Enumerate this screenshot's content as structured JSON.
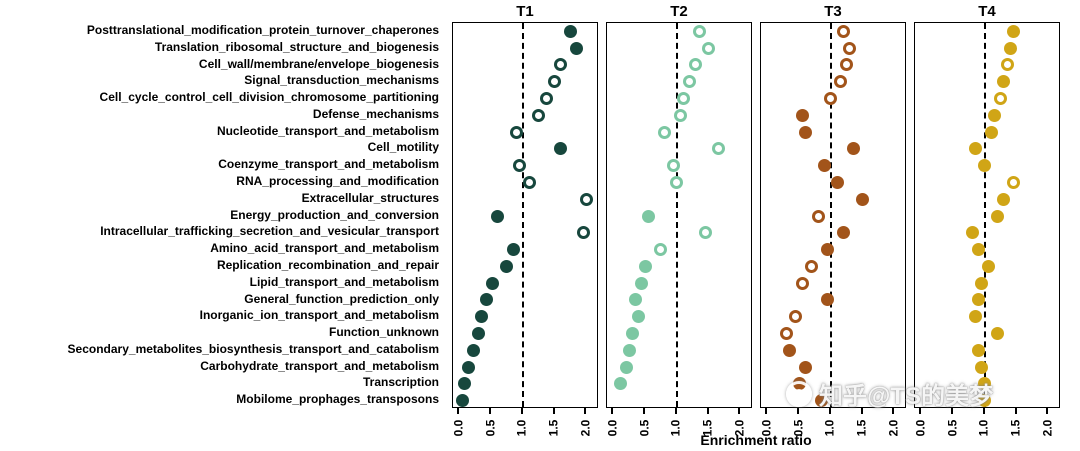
{
  "watermark": {
    "text": "知乎@TS的美梦"
  },
  "chart_data": {
    "type": "scatter",
    "title": "",
    "xlabel": "Enrichment ratio",
    "ylabel": "",
    "grid": false,
    "legend": "none",
    "x_ticks": [
      "0.0",
      "0.5",
      "1.0",
      "1.5",
      "2.0"
    ],
    "x_tick_values": [
      0.0,
      0.5,
      1.0,
      1.5,
      2.0
    ],
    "xlim": [
      -0.1,
      2.2
    ],
    "reference_line_x": 1.0,
    "categories": [
      "Posttranslational_modification_protein_turnover_chaperones",
      "Translation_ribosomal_structure_and_biogenesis",
      "Cell_wall/membrane/envelope_biogenesis",
      "Signal_transduction_mechanisms",
      "Cell_cycle_control_cell_division_chromosome_partitioning",
      "Defense_mechanisms",
      "Nucleotide_transport_and_metabolism",
      "Cell_motility",
      "Coenzyme_transport_and_metabolism",
      "RNA_processing_and_modification",
      "Extracellular_structures",
      "Energy_production_and_conversion",
      "Intracellular_trafficking_secretion_and_vesicular_transport",
      "Amino_acid_transport_and_metabolism",
      "Replication_recombination_and_repair",
      "Lipid_transport_and_metabolism",
      "General_function_prediction_only",
      "Inorganic_ion_transport_and_metabolism",
      "Function_unknown",
      "Secondary_metabolites_biosynthesis_transport_and_catabolism",
      "Carbohydrate_transport_and_metabolism",
      "Transcription",
      "Mobilome_prophages_transposons"
    ],
    "panels": [
      {
        "title": "T1",
        "color": "#17473d",
        "points": [
          {
            "x": 1.75,
            "filled": true
          },
          {
            "x": 1.85,
            "filled": true
          },
          {
            "x": 1.6,
            "filled": false
          },
          {
            "x": 1.5,
            "filled": false
          },
          {
            "x": 1.38,
            "filled": false
          },
          {
            "x": 1.25,
            "filled": false
          },
          {
            "x": 0.9,
            "filled": false
          },
          {
            "x": 1.6,
            "filled": true
          },
          {
            "x": 0.95,
            "filled": false
          },
          {
            "x": 1.1,
            "filled": false
          },
          {
            "x": 2.0,
            "filled": false
          },
          {
            "x": 0.6,
            "filled": true
          },
          {
            "x": 1.95,
            "filled": false
          },
          {
            "x": 0.85,
            "filled": true
          },
          {
            "x": 0.75,
            "filled": true
          },
          {
            "x": 0.52,
            "filled": true
          },
          {
            "x": 0.42,
            "filled": true
          },
          {
            "x": 0.35,
            "filled": true
          },
          {
            "x": 0.3,
            "filled": true
          },
          {
            "x": 0.22,
            "filled": true
          },
          {
            "x": 0.15,
            "filled": true
          },
          {
            "x": 0.08,
            "filled": true
          },
          {
            "x": 0.05,
            "filled": true
          }
        ]
      },
      {
        "title": "T2",
        "color": "#7cc7a2",
        "points": [
          {
            "x": 1.35,
            "filled": false
          },
          {
            "x": 1.5,
            "filled": false
          },
          {
            "x": 1.3,
            "filled": false
          },
          {
            "x": 1.2,
            "filled": false
          },
          {
            "x": 1.1,
            "filled": false
          },
          {
            "x": 1.05,
            "filled": false
          },
          {
            "x": 0.8,
            "filled": false
          },
          {
            "x": 1.65,
            "filled": false
          },
          {
            "x": 0.95,
            "filled": false
          },
          {
            "x": 1.0,
            "filled": false
          },
          null,
          {
            "x": 0.55,
            "filled": true
          },
          {
            "x": 1.45,
            "filled": false
          },
          {
            "x": 0.75,
            "filled": false
          },
          {
            "x": 0.5,
            "filled": true
          },
          {
            "x": 0.45,
            "filled": true
          },
          {
            "x": 0.35,
            "filled": true
          },
          {
            "x": 0.4,
            "filled": true
          },
          {
            "x": 0.3,
            "filled": true
          },
          {
            "x": 0.25,
            "filled": true
          },
          {
            "x": 0.2,
            "filled": true
          },
          {
            "x": 0.12,
            "filled": true
          },
          null
        ]
      },
      {
        "title": "T3",
        "color": "#a2541a",
        "points": [
          {
            "x": 1.2,
            "filled": false
          },
          {
            "x": 1.3,
            "filled": false
          },
          {
            "x": 1.25,
            "filled": false
          },
          {
            "x": 1.15,
            "filled": false
          },
          {
            "x": 1.0,
            "filled": false
          },
          {
            "x": 0.55,
            "filled": true
          },
          {
            "x": 0.6,
            "filled": true
          },
          {
            "x": 1.35,
            "filled": true
          },
          {
            "x": 0.9,
            "filled": true
          },
          {
            "x": 1.1,
            "filled": true
          },
          {
            "x": 1.5,
            "filled": true
          },
          {
            "x": 0.8,
            "filled": false
          },
          {
            "x": 1.2,
            "filled": true
          },
          {
            "x": 0.95,
            "filled": true
          },
          {
            "x": 0.7,
            "filled": false
          },
          {
            "x": 0.55,
            "filled": false
          },
          {
            "x": 0.95,
            "filled": true
          },
          {
            "x": 0.45,
            "filled": false
          },
          {
            "x": 0.3,
            "filled": false
          },
          {
            "x": 0.35,
            "filled": true
          },
          {
            "x": 0.6,
            "filled": true
          },
          {
            "x": 0.5,
            "filled": true
          },
          {
            "x": 0.85,
            "filled": true
          }
        ]
      },
      {
        "title": "T4",
        "color": "#d0a516",
        "points": [
          {
            "x": 1.45,
            "filled": true
          },
          {
            "x": 1.4,
            "filled": true
          },
          {
            "x": 1.35,
            "filled": false
          },
          {
            "x": 1.3,
            "filled": true
          },
          {
            "x": 1.25,
            "filled": false
          },
          {
            "x": 1.15,
            "filled": true
          },
          {
            "x": 1.1,
            "filled": true
          },
          {
            "x": 0.85,
            "filled": true
          },
          {
            "x": 1.0,
            "filled": true
          },
          {
            "x": 1.45,
            "filled": false
          },
          {
            "x": 1.3,
            "filled": true
          },
          {
            "x": 1.2,
            "filled": true
          },
          {
            "x": 0.8,
            "filled": true
          },
          {
            "x": 0.9,
            "filled": true
          },
          {
            "x": 1.05,
            "filled": true
          },
          {
            "x": 0.95,
            "filled": true
          },
          {
            "x": 0.9,
            "filled": true
          },
          {
            "x": 0.85,
            "filled": true
          },
          {
            "x": 1.2,
            "filled": true
          },
          {
            "x": 0.9,
            "filled": true
          },
          {
            "x": 0.95,
            "filled": true
          },
          {
            "x": 1.0,
            "filled": true
          },
          {
            "x": 1.0,
            "filled": true
          }
        ]
      }
    ]
  }
}
